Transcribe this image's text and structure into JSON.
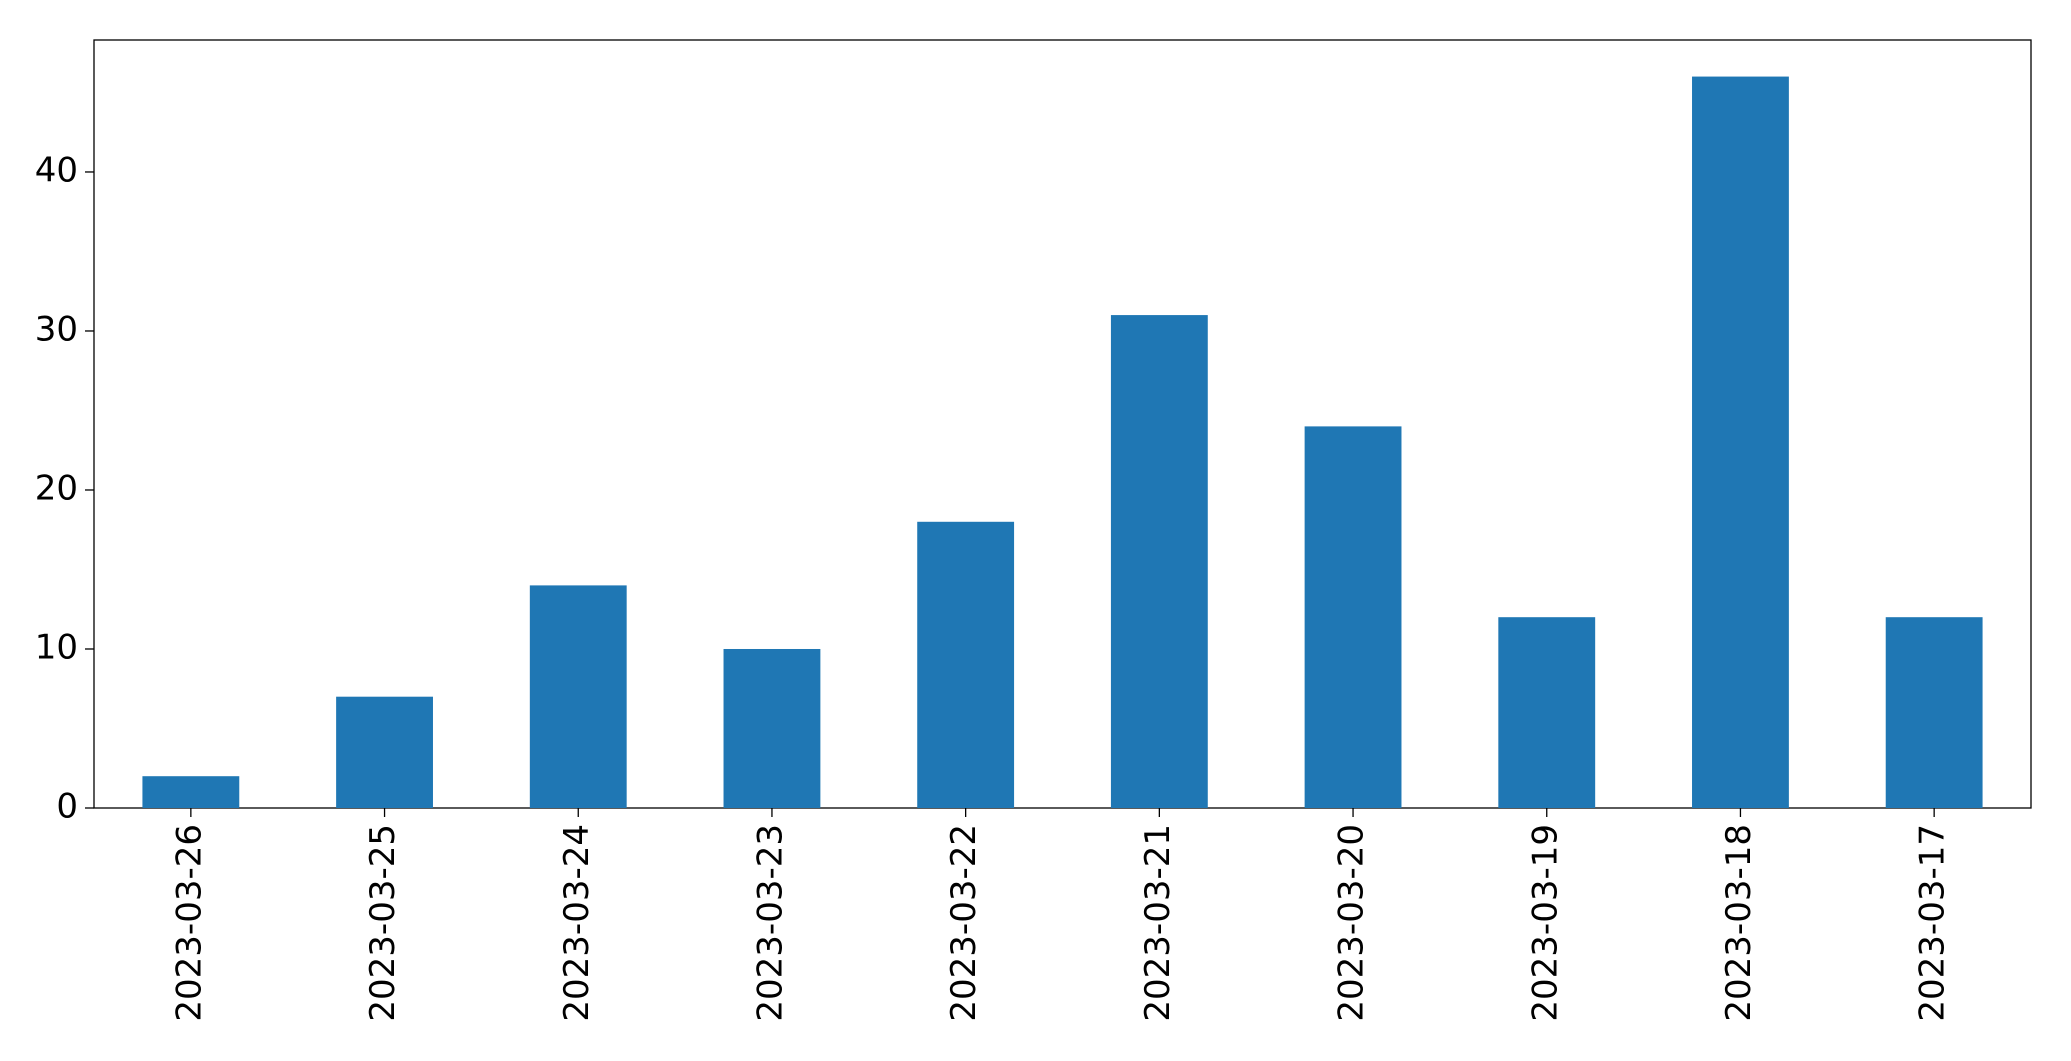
{
  "chart_data": {
    "type": "bar",
    "categories": [
      "2023-03-26",
      "2023-03-25",
      "2023-03-24",
      "2023-03-23",
      "2023-03-22",
      "2023-03-21",
      "2023-03-20",
      "2023-03-19",
      "2023-03-18",
      "2023-03-17"
    ],
    "values": [
      2,
      7,
      14,
      10,
      18,
      31,
      24,
      12,
      46,
      12
    ],
    "color": "#1f77b4",
    "ylim": [
      0,
      48.3
    ],
    "yticks": [
      0,
      10,
      20,
      30,
      40
    ],
    "grid": false
  }
}
